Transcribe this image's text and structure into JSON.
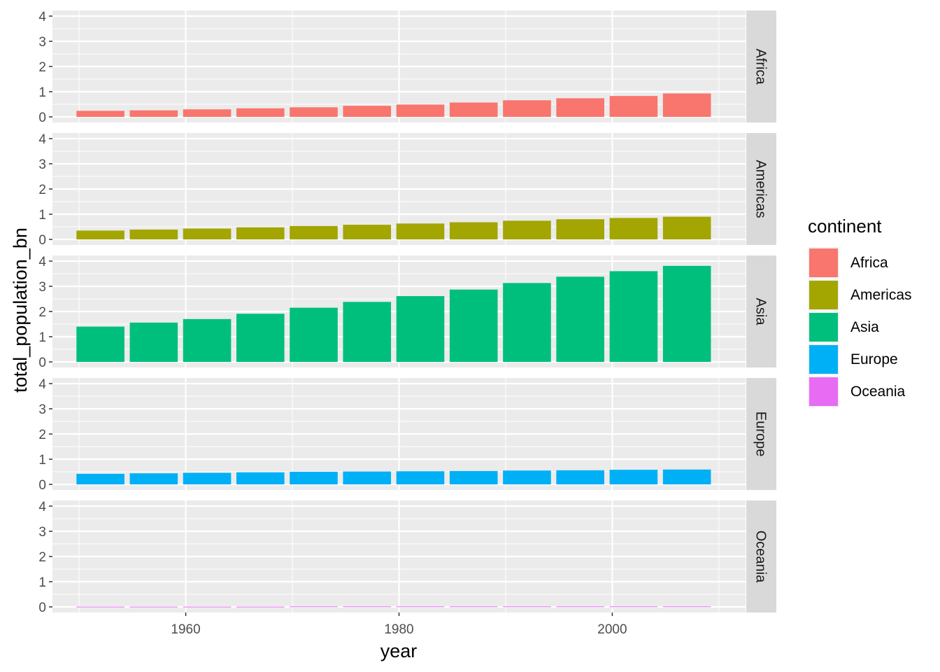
{
  "chart_data": {
    "type": "bar",
    "facet_by": "continent",
    "xlabel": "year",
    "ylabel": "total_population_bn",
    "xlim": [
      1947.5,
      2012.5
    ],
    "ylim": [
      0,
      4
    ],
    "x_ticks": [
      1960,
      1980,
      2000
    ],
    "y_ticks": [
      0,
      1,
      2,
      3,
      4
    ],
    "grid": true,
    "legend": {
      "title": "continent",
      "placement": "right",
      "entries": [
        "Africa",
        "Americas",
        "Asia",
        "Europe",
        "Oceania"
      ]
    },
    "x": [
      1952,
      1957,
      1962,
      1967,
      1972,
      1977,
      1982,
      1987,
      1992,
      1997,
      2002,
      2007
    ],
    "series": [
      {
        "name": "Africa",
        "color": "#F8766D",
        "values": [
          0.24,
          0.26,
          0.3,
          0.34,
          0.38,
          0.44,
          0.49,
          0.57,
          0.66,
          0.74,
          0.83,
          0.93
        ]
      },
      {
        "name": "Americas",
        "color": "#A3A500",
        "values": [
          0.35,
          0.39,
          0.43,
          0.48,
          0.53,
          0.58,
          0.63,
          0.68,
          0.74,
          0.8,
          0.85,
          0.9
        ]
      },
      {
        "name": "Asia",
        "color": "#00BF7D",
        "values": [
          1.4,
          1.56,
          1.7,
          1.91,
          2.15,
          2.38,
          2.61,
          2.87,
          3.13,
          3.38,
          3.6,
          3.81
        ]
      },
      {
        "name": "Europe",
        "color": "#00B0F6",
        "values": [
          0.42,
          0.44,
          0.46,
          0.48,
          0.5,
          0.51,
          0.52,
          0.53,
          0.55,
          0.56,
          0.58,
          0.59
        ]
      },
      {
        "name": "Oceania",
        "color": "#E76BF3",
        "values": [
          0.01,
          0.01,
          0.01,
          0.01,
          0.02,
          0.02,
          0.02,
          0.02,
          0.02,
          0.02,
          0.02,
          0.02
        ]
      }
    ]
  }
}
